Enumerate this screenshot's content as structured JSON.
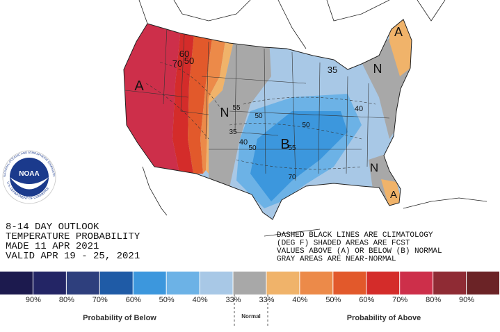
{
  "title_lines": [
    "8-14 DAY OUTLOOK",
    "TEMPERATURE PROBABILITY",
    "MADE  11 APR 2021",
    "VALID  APR 19 - 25, 2021"
  ],
  "notes": [
    "DASHED BLACK LINES ARE CLIMATOLOGY",
    "(DEG F) SHADED AREAS ARE FCST",
    "VALUES ABOVE (A) OR BELOW (B) NORMAL",
    "GRAY AREAS ARE NEAR-NORMAL"
  ],
  "map_labels": [
    "A",
    "70",
    "60",
    "50",
    "N",
    "55",
    "50",
    "35",
    "40",
    "50",
    "B",
    "55",
    "50",
    "35",
    "N",
    "40",
    "70",
    "N",
    "A",
    "A"
  ],
  "logo": {
    "name": "NOAA",
    "ring_top": "NATIONAL OCEANIC AND ATMOSPHERIC ADMINISTRATION",
    "ring_bottom": "U.S. DEPARTMENT OF COMMERCE"
  },
  "legend": {
    "colors": [
      "#1c1a4e",
      "#232565",
      "#2e3f7d",
      "#1f5ba6",
      "#3c97dd",
      "#6cb2e6",
      "#a8c8e6",
      "#a8a8a8",
      "#f0b36a",
      "#ec8a49",
      "#e2592b",
      "#d42c2a",
      "#cd2f4a",
      "#8f2b34",
      "#6b2326"
    ],
    "labels": [
      "90%",
      "80%",
      "70%",
      "60%",
      "50%",
      "40%",
      "33%",
      "33%",
      "40%",
      "50%",
      "60%",
      "70%",
      "80%",
      "90%"
    ],
    "below": "Probability of Below",
    "normal": "Normal",
    "above": "Probability of Above"
  }
}
